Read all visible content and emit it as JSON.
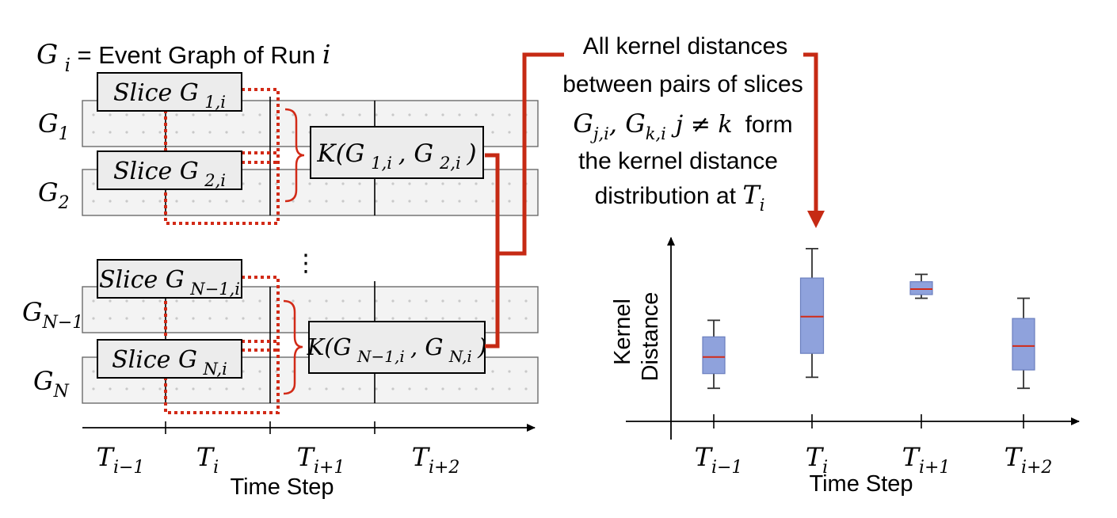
{
  "header": {
    "definition_lhs": "G",
    "definition_lhs_sub": "i",
    "definition_text": " = Event Graph of Run ",
    "definition_var": "i"
  },
  "left_panel": {
    "rows": [
      {
        "label": "G",
        "sub": "1"
      },
      {
        "label": "G",
        "sub": "2"
      },
      {
        "label": "G",
        "sub": "N−1"
      },
      {
        "label": "G",
        "sub": "N"
      }
    ],
    "slices": [
      {
        "text": "Slice G",
        "sub": "1,i"
      },
      {
        "text": "Slice G",
        "sub": "2,i"
      },
      {
        "text": "Slice G",
        "sub": "N−1,i"
      },
      {
        "text": "Slice G",
        "sub": "N,i"
      }
    ],
    "kernels": [
      {
        "text": "K(G",
        "sub1": "1,i",
        "mid": ", G",
        "sub2": "2,i",
        "end": ")"
      },
      {
        "text": "K(G",
        "sub1": "N−1,i",
        "mid": ", G",
        "sub2": "N,i",
        "end": ")"
      }
    ],
    "ellipsis": "⋮",
    "time_ticks": [
      {
        "base": "T",
        "sub": "i−1"
      },
      {
        "base": "T",
        "sub": "i"
      },
      {
        "base": "T",
        "sub": "i+1"
      },
      {
        "base": "T",
        "sub": "i+2"
      }
    ],
    "x_axis_label": "Time Step"
  },
  "annotation": {
    "line1": "All kernel distances",
    "line2": "between pairs of slices",
    "line3_g1": "G",
    "line3_g1_sub": "j,i",
    "line3_g2": ", G",
    "line3_g2_sub": "k,i",
    "line3_cond": "j ≠ k",
    "line3_tail": "form",
    "line4": "the kernel distance",
    "line5": "distribution at ",
    "line5_var": "T",
    "line5_sub": "i"
  },
  "colors": {
    "accent_red": "#d22a17",
    "box_fill": "#8fa2dc",
    "panel_gray": "#ececec"
  },
  "chart_data": {
    "type": "box",
    "ylabel_line1": "Kernel",
    "ylabel_line2": "Distance",
    "xlabel": "Time Step",
    "categories": [
      {
        "base": "T",
        "sub": "i−1"
      },
      {
        "base": "T",
        "sub": "i"
      },
      {
        "base": "T",
        "sub": "i+1"
      },
      {
        "base": "T",
        "sub": "i+2"
      }
    ],
    "boxes": [
      {
        "whisker_low": 0.18,
        "q1": 0.26,
        "median": 0.35,
        "q3": 0.46,
        "whisker_high": 0.55
      },
      {
        "whisker_low": 0.24,
        "q1": 0.37,
        "median": 0.57,
        "q3": 0.78,
        "whisker_high": 0.94
      },
      {
        "whisker_low": 0.67,
        "q1": 0.69,
        "median": 0.72,
        "q3": 0.76,
        "whisker_high": 0.8
      },
      {
        "whisker_low": 0.18,
        "q1": 0.28,
        "median": 0.41,
        "q3": 0.56,
        "whisker_high": 0.67
      }
    ],
    "ylim": [
      0,
      1
    ],
    "grid": false
  }
}
